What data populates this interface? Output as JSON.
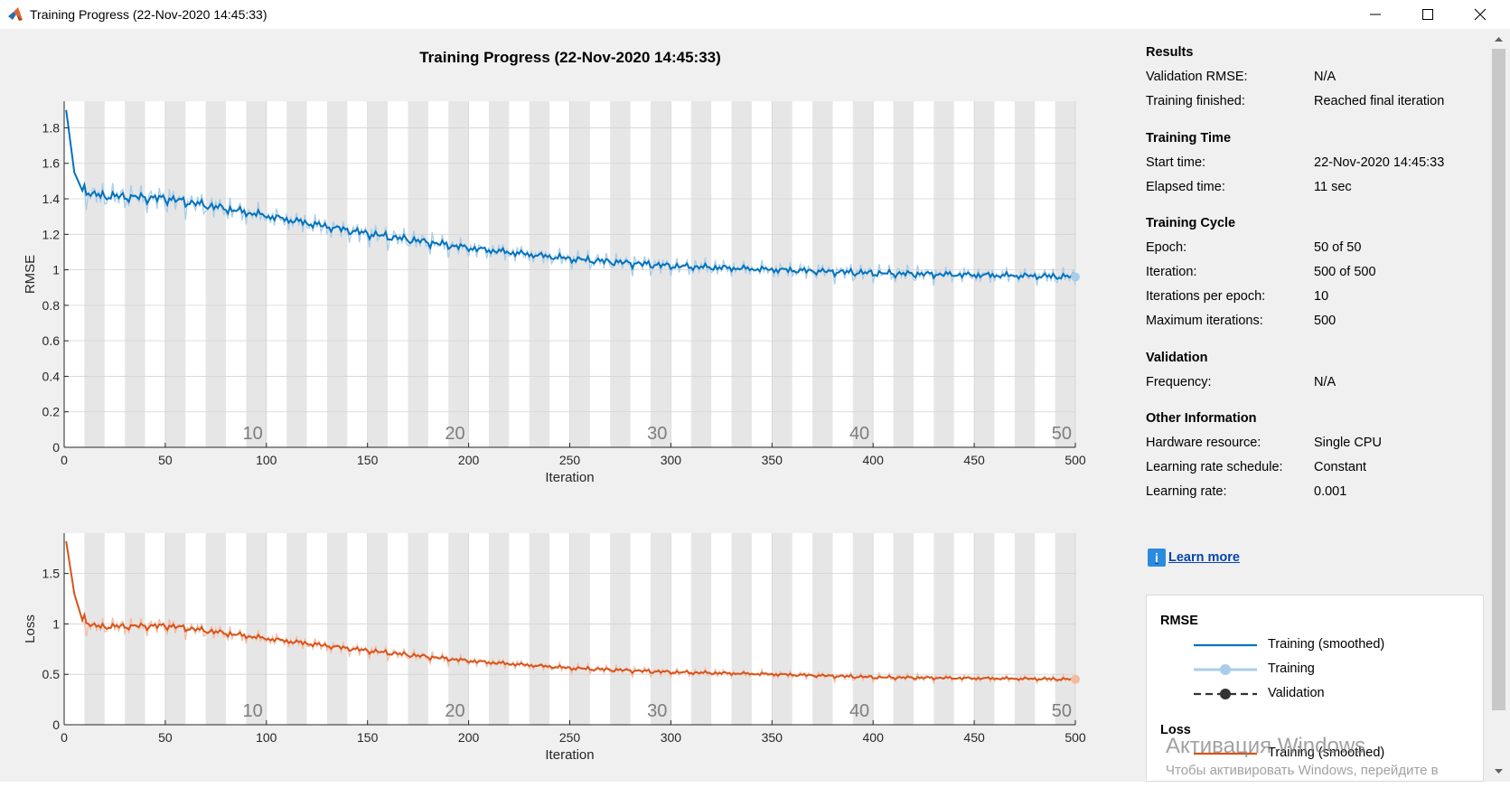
{
  "window": {
    "title": "Training Progress (22-Nov-2020 14:45:33)",
    "icon": "matlab-icon",
    "buttons": [
      "minimize-icon",
      "maximize-icon",
      "close-icon"
    ]
  },
  "plot_title": "Training Progress (22-Nov-2020 14:45:33)",
  "colors": {
    "rmse_smoothed": "#0072bd",
    "rmse_raw": "#a9cde9",
    "loss_smoothed": "#d95319",
    "loss_raw": "#f4bba2",
    "epoch_band": "#e6e6e6",
    "plot_background": "#ffffff",
    "window_background": "#f0f0f0"
  },
  "results": {
    "sections": [
      {
        "heading": "Results",
        "rows": [
          {
            "label": "Validation RMSE:",
            "value": "N/A"
          },
          {
            "label": "Training finished:",
            "value": "Reached final iteration"
          }
        ]
      },
      {
        "heading": "Training Time",
        "rows": [
          {
            "label": "Start time:",
            "value": "22-Nov-2020 14:45:33"
          },
          {
            "label": "Elapsed time:",
            "value": "11 sec"
          }
        ]
      },
      {
        "heading": "Training Cycle",
        "rows": [
          {
            "label": "Epoch:",
            "value": "50 of 50"
          },
          {
            "label": "Iteration:",
            "value": "500 of 500"
          },
          {
            "label": "Iterations per epoch:",
            "value": "10"
          },
          {
            "label": "Maximum iterations:",
            "value": "500"
          }
        ]
      },
      {
        "heading": "Validation",
        "rows": [
          {
            "label": "Frequency:",
            "value": "N/A"
          }
        ]
      },
      {
        "heading": "Other Information",
        "rows": [
          {
            "label": "Hardware resource:",
            "value": "Single CPU"
          },
          {
            "label": "Learning rate schedule:",
            "value": "Constant"
          },
          {
            "label": "Learning rate:",
            "value": "0.001"
          }
        ]
      }
    ],
    "learn_more": "Learn more"
  },
  "legend": {
    "rmse_heading": "RMSE",
    "rmse_items": [
      {
        "label": "Training (smoothed)",
        "style": "solid-line",
        "color": "#0072bd"
      },
      {
        "label": "Training",
        "style": "line-marker",
        "color": "#a9cde9"
      },
      {
        "label": "Validation",
        "style": "dashed-marker",
        "color": "#333333"
      }
    ],
    "loss_heading": "Loss",
    "loss_items": [
      {
        "label": "Training (smoothed)",
        "style": "solid-line",
        "color": "#d95319"
      }
    ]
  },
  "watermark": {
    "title": "Активация Windows",
    "subtitle": "Чтобы активировать Windows, перейдите в"
  },
  "chart_data": [
    {
      "type": "line",
      "ylabel": "RMSE",
      "xlabel": "Iteration",
      "xlim": [
        0,
        500
      ],
      "ylim": [
        0,
        1.95
      ],
      "xticks": [
        0,
        50,
        100,
        150,
        200,
        250,
        300,
        350,
        400,
        450,
        500
      ],
      "yticks": [
        0,
        0.2,
        0.4,
        0.6,
        0.8,
        1,
        1.2,
        1.4,
        1.6,
        1.8
      ],
      "ytick_labels": [
        "0",
        "0.2",
        "0.4",
        "0.6",
        "0.8",
        "1",
        "1.2",
        "1.4",
        "1.6",
        "1.8"
      ],
      "epoch_labels": [
        "10",
        "20",
        "30",
        "40",
        "50"
      ],
      "iterations_per_epoch": 10,
      "grid": true,
      "trend_knots": {
        "x": [
          1,
          5,
          10,
          50,
          100,
          150,
          200,
          250,
          300,
          350,
          400,
          450,
          500
        ],
        "y": [
          1.9,
          1.55,
          1.42,
          1.4,
          1.3,
          1.2,
          1.12,
          1.06,
          1.02,
          1.0,
          0.98,
          0.97,
          0.96
        ]
      },
      "series": [
        {
          "name": "Training (smoothed)",
          "role": "smoothed"
        },
        {
          "name": "Training",
          "role": "raw",
          "final_value": 0.96
        }
      ]
    },
    {
      "type": "line",
      "ylabel": "Loss",
      "xlabel": "Iteration",
      "xlim": [
        0,
        500
      ],
      "ylim": [
        0,
        1.9
      ],
      "xticks": [
        0,
        50,
        100,
        150,
        200,
        250,
        300,
        350,
        400,
        450,
        500
      ],
      "yticks": [
        0,
        0.5,
        1,
        1.5
      ],
      "ytick_labels": [
        "0",
        "0.5",
        "1",
        "1.5"
      ],
      "epoch_labels": [
        "10",
        "20",
        "30",
        "40",
        "50"
      ],
      "iterations_per_epoch": 10,
      "grid": true,
      "trend_knots": {
        "x": [
          1,
          5,
          10,
          50,
          100,
          150,
          200,
          250,
          300,
          350,
          400,
          450,
          500
        ],
        "y": [
          1.82,
          1.3,
          0.97,
          0.98,
          0.85,
          0.73,
          0.63,
          0.56,
          0.52,
          0.5,
          0.47,
          0.46,
          0.45
        ]
      },
      "series": [
        {
          "name": "Training (smoothed)",
          "role": "smoothed"
        },
        {
          "name": "Training",
          "role": "raw",
          "final_value": 0.45
        }
      ]
    }
  ]
}
